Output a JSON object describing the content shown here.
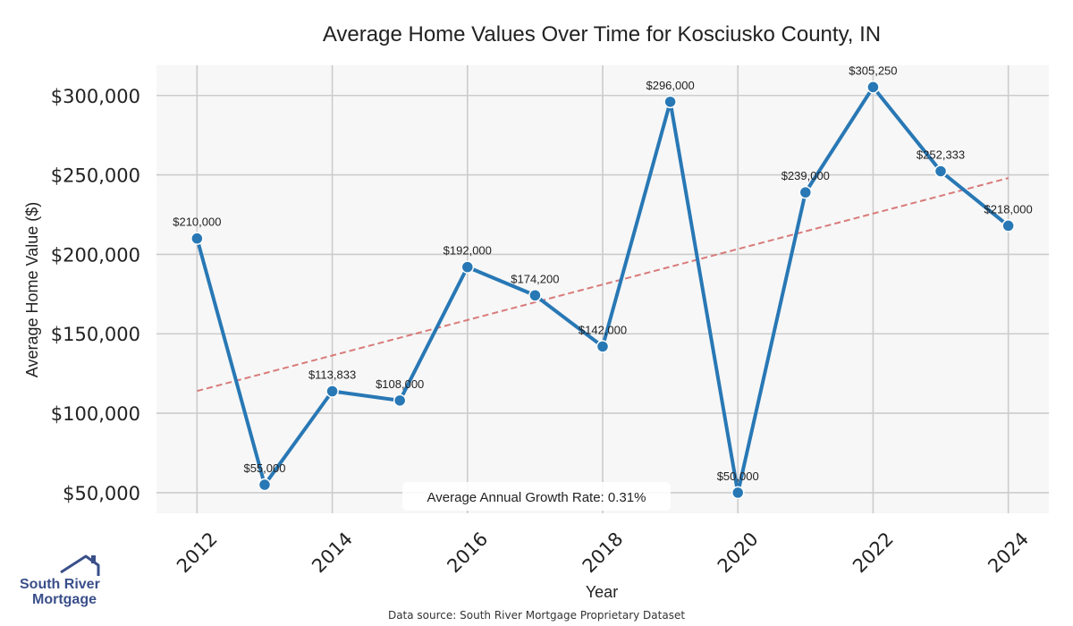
{
  "chart_data": {
    "type": "line",
    "title": "Average Home Values Over Time for Kosciusko County, IN",
    "xlabel": "Year",
    "ylabel": "Average Home Value ($)",
    "x": [
      2012,
      2013,
      2014,
      2015,
      2016,
      2017,
      2018,
      2019,
      2020,
      2021,
      2022,
      2023,
      2024
    ],
    "series": [
      {
        "values": [
          210000,
          55000,
          113833,
          108000,
          192000,
          174200,
          142000,
          296000,
          50000,
          239000,
          305250,
          252333,
          218000
        ],
        "labels": [
          "$210,000",
          "$55,000",
          "$113,833",
          "$108,000",
          "$192,000",
          "$174,200",
          "$142,000",
          "$296,000",
          "$50,000",
          "$239,000",
          "$305,250",
          "$252,333",
          "$218,000"
        ],
        "color": "#2878b5"
      }
    ],
    "trendline": {
      "start": [
        2012,
        114000
      ],
      "end": [
        2024,
        248000
      ],
      "color": "#d97a7a",
      "style": "dashed"
    },
    "xticks": [
      2012,
      2014,
      2016,
      2018,
      2020,
      2022,
      2024
    ],
    "xtick_labels": [
      "2012",
      "2014",
      "2016",
      "2018",
      "2020",
      "2022",
      "2024"
    ],
    "yticks": [
      50000,
      100000,
      150000,
      200000,
      250000,
      300000
    ],
    "ytick_labels": [
      "$50,000",
      "$100,000",
      "$150,000",
      "$200,000",
      "$250,000",
      "$300,000"
    ],
    "ylim": [
      37000,
      319000
    ],
    "xlim": [
      2011.4,
      2024.6
    ],
    "grid": true,
    "annotation": "Average Annual Growth Rate: 0.31%"
  },
  "logo": {
    "line1": "South River",
    "line2": "Mortgage",
    "color": "#3a4f8a"
  },
  "source": "Data source: South River Mortgage Proprietary Dataset"
}
